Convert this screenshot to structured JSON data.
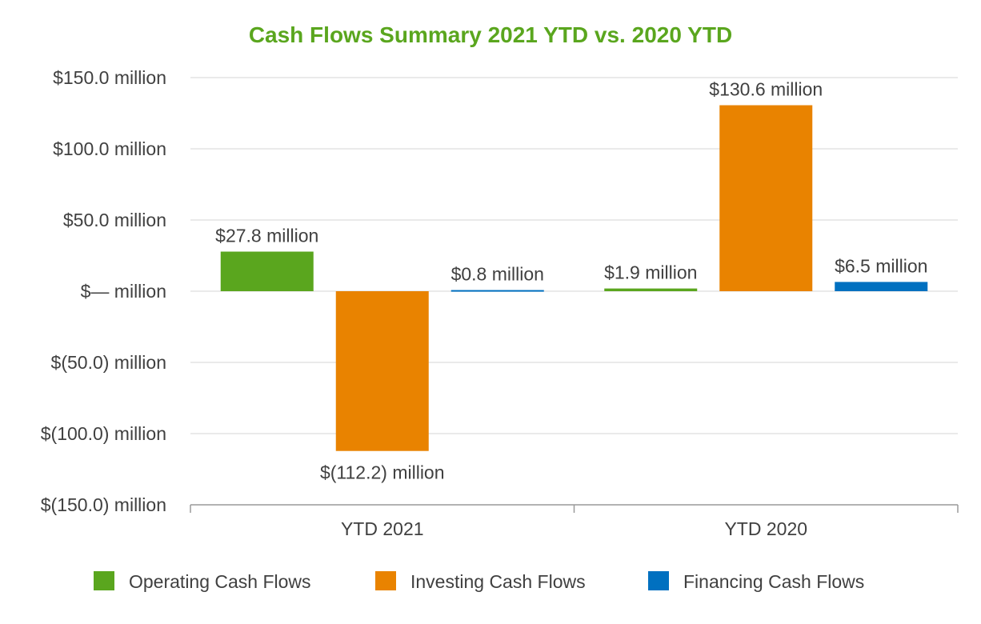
{
  "chart_data": {
    "type": "bar",
    "title": "Cash Flows Summary 2021 YTD vs. 2020 YTD",
    "title_color": "#5aa61e",
    "xlabel": "",
    "ylabel": "",
    "categories": [
      "YTD 2021",
      "YTD 2020"
    ],
    "series": [
      {
        "name": "Operating Cash Flows",
        "color": "#5aa61e",
        "values": [
          27.8,
          1.9
        ],
        "labels": [
          "$27.8 million",
          "$1.9 million"
        ]
      },
      {
        "name": "Investing Cash Flows",
        "color": "#e98300",
        "values": [
          -112.2,
          130.6
        ],
        "labels": [
          "$(112.2) million",
          "$130.6 million"
        ]
      },
      {
        "name": "Financing Cash Flows",
        "color": "#0070c0",
        "values": [
          0.8,
          6.5
        ],
        "labels": [
          "$0.8 million",
          "$6.5 million"
        ]
      }
    ],
    "ylim": [
      -150,
      150
    ],
    "yticks": [
      150,
      100,
      50,
      0,
      -50,
      -100,
      -150
    ],
    "ytick_labels": [
      "$150.0 million",
      "$100.0 million",
      "$50.0 million",
      "$— million",
      "$(50.0) million",
      "$(100.0) million",
      "$(150.0) million"
    ],
    "grid": true,
    "legend": "bottom"
  }
}
